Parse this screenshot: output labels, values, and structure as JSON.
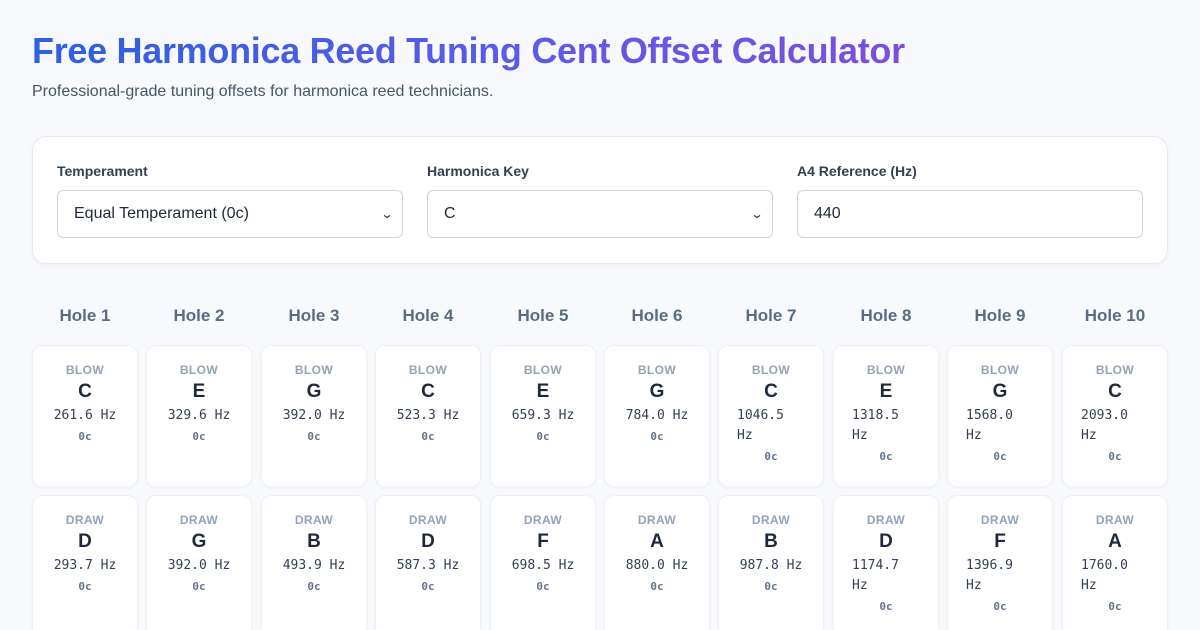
{
  "title": "Free Harmonica Reed Tuning Cent Offset Calculator",
  "subtitle": "Professional-grade tuning offsets for harmonica reed technicians.",
  "controls": {
    "temperament": {
      "label": "Temperament",
      "value": "Equal Temperament (0c)"
    },
    "key": {
      "label": "Harmonica Key",
      "value": "C"
    },
    "a4": {
      "label": "A4 Reference (Hz)",
      "value": "440"
    }
  },
  "holes": [
    {
      "label": "Hole 1",
      "blow": {
        "kind": "BLOW",
        "note": "C",
        "hz": "261.6 Hz",
        "cents": "0c"
      },
      "draw": {
        "kind": "DRAW",
        "note": "D",
        "hz": "293.7 Hz",
        "cents": "0c"
      }
    },
    {
      "label": "Hole 2",
      "blow": {
        "kind": "BLOW",
        "note": "E",
        "hz": "329.6 Hz",
        "cents": "0c"
      },
      "draw": {
        "kind": "DRAW",
        "note": "G",
        "hz": "392.0 Hz",
        "cents": "0c"
      }
    },
    {
      "label": "Hole 3",
      "blow": {
        "kind": "BLOW",
        "note": "G",
        "hz": "392.0 Hz",
        "cents": "0c"
      },
      "draw": {
        "kind": "DRAW",
        "note": "B",
        "hz": "493.9 Hz",
        "cents": "0c"
      }
    },
    {
      "label": "Hole 4",
      "blow": {
        "kind": "BLOW",
        "note": "C",
        "hz": "523.3 Hz",
        "cents": "0c"
      },
      "draw": {
        "kind": "DRAW",
        "note": "D",
        "hz": "587.3 Hz",
        "cents": "0c"
      }
    },
    {
      "label": "Hole 5",
      "blow": {
        "kind": "BLOW",
        "note": "E",
        "hz": "659.3 Hz",
        "cents": "0c"
      },
      "draw": {
        "kind": "DRAW",
        "note": "F",
        "hz": "698.5 Hz",
        "cents": "0c"
      }
    },
    {
      "label": "Hole 6",
      "blow": {
        "kind": "BLOW",
        "note": "G",
        "hz": "784.0 Hz",
        "cents": "0c"
      },
      "draw": {
        "kind": "DRAW",
        "note": "A",
        "hz": "880.0 Hz",
        "cents": "0c"
      }
    },
    {
      "label": "Hole 7",
      "blow": {
        "kind": "BLOW",
        "note": "C",
        "hz": "1046.5 Hz",
        "cents": "0c"
      },
      "draw": {
        "kind": "DRAW",
        "note": "B",
        "hz": "987.8 Hz",
        "cents": "0c"
      }
    },
    {
      "label": "Hole 8",
      "blow": {
        "kind": "BLOW",
        "note": "E",
        "hz": "1318.5 Hz",
        "cents": "0c"
      },
      "draw": {
        "kind": "DRAW",
        "note": "D",
        "hz": "1174.7 Hz",
        "cents": "0c"
      }
    },
    {
      "label": "Hole 9",
      "blow": {
        "kind": "BLOW",
        "note": "G",
        "hz": "1568.0 Hz",
        "cents": "0c"
      },
      "draw": {
        "kind": "DRAW",
        "note": "F",
        "hz": "1396.9 Hz",
        "cents": "0c"
      }
    },
    {
      "label": "Hole 10",
      "blow": {
        "kind": "BLOW",
        "note": "C",
        "hz": "2093.0 Hz",
        "cents": "0c"
      },
      "draw": {
        "kind": "DRAW",
        "note": "A",
        "hz": "1760.0 Hz",
        "cents": "0c"
      }
    }
  ]
}
